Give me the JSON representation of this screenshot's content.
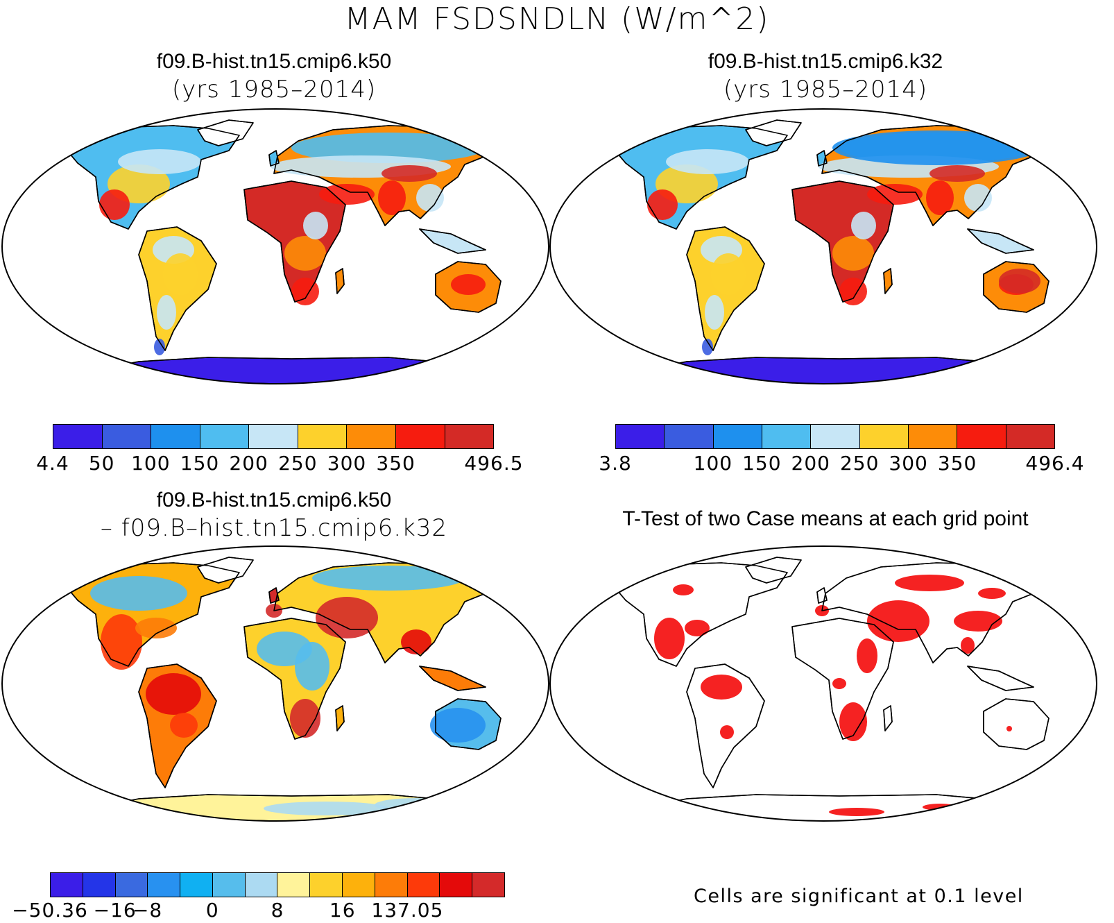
{
  "title": "MAM FSDSNDLN (W/m^2)",
  "panels": [
    {
      "id": "k50",
      "title": "f09.B-hist.tn15.cmip6.k50",
      "subtitle": "(yrs 1985–2014)"
    },
    {
      "id": "k32",
      "title": "f09.B-hist.tn15.cmip6.k32",
      "subtitle": "(yrs 1985–2014)"
    },
    {
      "id": "diff",
      "title": "f09.B-hist.tn15.cmip6.k50",
      "subtitle": "– f09.B–hist.tn15.cmip6.k32"
    },
    {
      "id": "ttest",
      "title": "T-Test of two Case means at each grid point",
      "subtitle": ""
    }
  ],
  "colorbars": {
    "k50": {
      "colors": [
        "#3b1ee8",
        "#3a5ce0",
        "#1e90ee",
        "#4fbdf0",
        "#c7e6f6",
        "#fdd12c",
        "#fd8c08",
        "#f61c0f",
        "#d42a26"
      ],
      "labels": [
        "4.4",
        "50",
        "100",
        "150",
        "200",
        "250",
        "300",
        "350",
        "496.5"
      ],
      "label_edges": [
        0,
        1,
        2,
        3,
        4,
        5,
        6,
        7,
        9
      ]
    },
    "k32": {
      "colors": [
        "#3b1ee8",
        "#3a5ce0",
        "#1e90ee",
        "#4fbdf0",
        "#c7e6f6",
        "#fdd12c",
        "#fd8c08",
        "#f61c0f",
        "#d42a26"
      ],
      "labels": [
        "3.8",
        "100",
        "150",
        "200",
        "250",
        "300",
        "350",
        "496.4"
      ],
      "label_edges": [
        0,
        2,
        3,
        4,
        5,
        6,
        7,
        9
      ]
    },
    "diff": {
      "colors": [
        "#3b1ee8",
        "#2435e8",
        "#3a6ae0",
        "#2891f0",
        "#10b0f2",
        "#56bdec",
        "#acdaf2",
        "#fff39a",
        "#fdd12c",
        "#fdb10c",
        "#fd7c08",
        "#fd3a0a",
        "#e40a0a",
        "#d42a2a"
      ],
      "labels": [
        "−50.36",
        "−16",
        "−8",
        "0",
        "8",
        "16",
        "137.05"
      ],
      "label_edges": [
        0,
        2,
        3,
        5,
        7,
        9,
        11,
        14
      ]
    }
  },
  "note": "Cells are significant at 0.1 level",
  "chart_data": [
    {
      "type": "heatmap",
      "title": "f09.B-hist.tn15.cmip6.k50",
      "subtitle": "(yrs 1985–2014)",
      "variable": "MAM FSDSNDLN (W/m^2)",
      "colorbar_levels": [
        4.4,
        50,
        100,
        150,
        200,
        250,
        300,
        350,
        496.5
      ],
      "range": [
        4.4,
        496.5
      ]
    },
    {
      "type": "heatmap",
      "title": "f09.B-hist.tn15.cmip6.k32",
      "subtitle": "(yrs 1985–2014)",
      "variable": "MAM FSDSNDLN (W/m^2)",
      "colorbar_levels": [
        3.8,
        100,
        150,
        200,
        250,
        300,
        350,
        496.4
      ],
      "range": [
        3.8,
        496.4
      ]
    },
    {
      "type": "heatmap",
      "title": "f09.B-hist.tn15.cmip6.k50",
      "subtitle": "– f09.B–hist.tn15.cmip6.k32",
      "colorbar_levels": [
        -50.36,
        -16,
        -8,
        0,
        8,
        16,
        137.05
      ],
      "range": [
        -50.36,
        137.05
      ]
    },
    {
      "type": "heatmap",
      "title": "T-Test of two Case means at each grid point",
      "note": "Cells are significant at 0.1 level",
      "significance_level": 0.1,
      "colors": {
        "significant": "#f40a0a",
        "not_significant": "#ffffff"
      }
    }
  ]
}
